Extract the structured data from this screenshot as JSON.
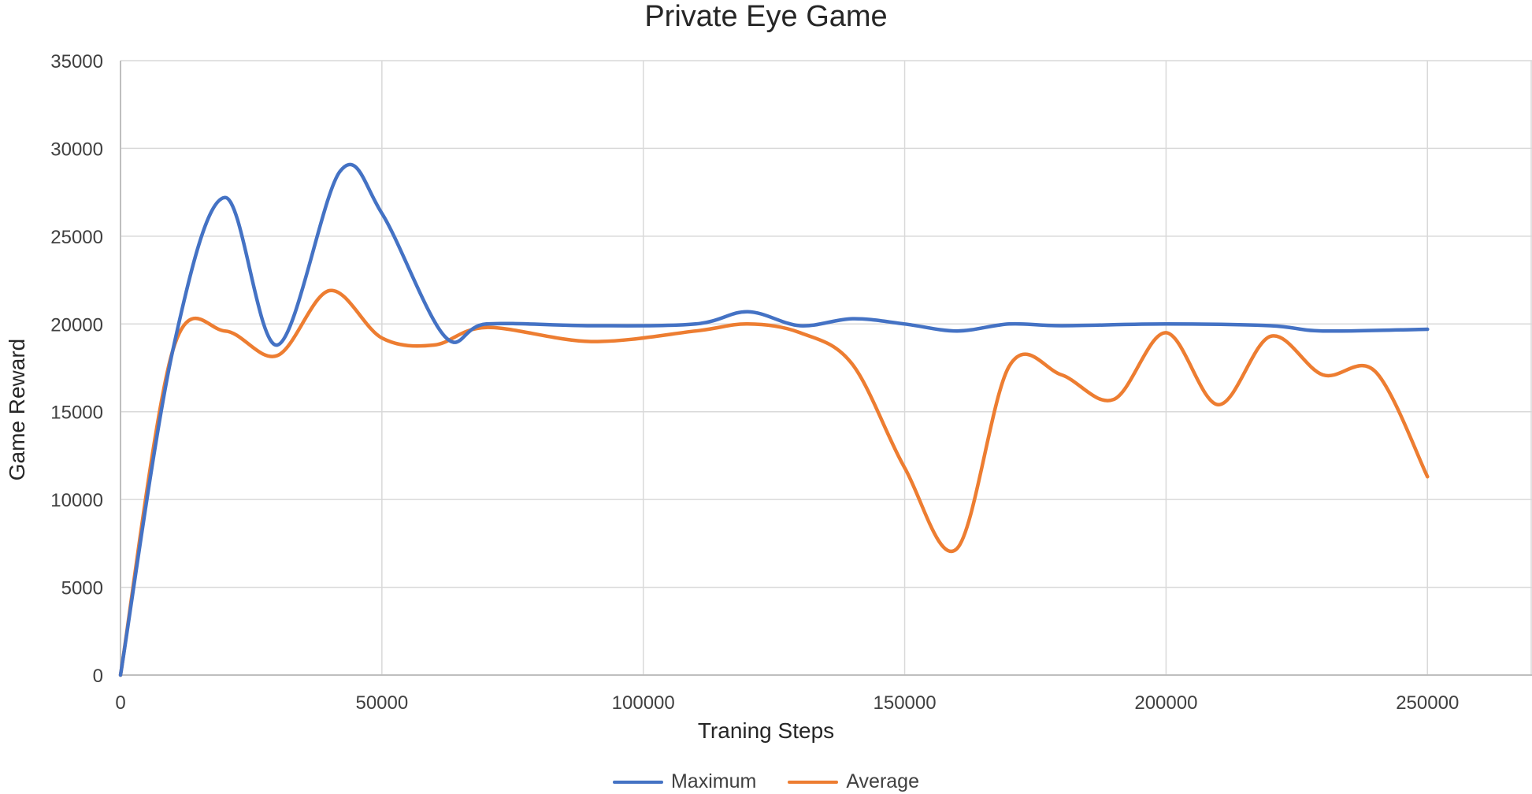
{
  "chart_data": {
    "type": "line",
    "title": "Private Eye Game",
    "xlabel": "Traning Steps",
    "ylabel": "Game Reward",
    "xlim": [
      0,
      270000
    ],
    "ylim": [
      0,
      35000
    ],
    "x_ticks": [
      0,
      50000,
      100000,
      150000,
      200000,
      250000
    ],
    "y_ticks": [
      0,
      5000,
      10000,
      15000,
      20000,
      25000,
      30000,
      35000
    ],
    "grid": true,
    "legend": "bottom",
    "series": [
      {
        "name": "Maximum",
        "color": "#4472C4",
        "points": [
          [
            0,
            0
          ],
          [
            10000,
            18500
          ],
          [
            20000,
            27200
          ],
          [
            30000,
            18800
          ],
          [
            42000,
            28700
          ],
          [
            50000,
            26300
          ],
          [
            62000,
            19300
          ],
          [
            70000,
            20000
          ],
          [
            90000,
            19900
          ],
          [
            110000,
            20000
          ],
          [
            120000,
            20700
          ],
          [
            130000,
            19900
          ],
          [
            140000,
            20300
          ],
          [
            150000,
            20000
          ],
          [
            160000,
            19600
          ],
          [
            170000,
            20000
          ],
          [
            180000,
            19900
          ],
          [
            200000,
            20000
          ],
          [
            220000,
            19900
          ],
          [
            230000,
            19600
          ],
          [
            250000,
            19700
          ]
        ]
      },
      {
        "name": "Average",
        "color": "#ED7D31",
        "points": [
          [
            0,
            0
          ],
          [
            10000,
            18500
          ],
          [
            20000,
            19600
          ],
          [
            30000,
            18200
          ],
          [
            40000,
            21900
          ],
          [
            50000,
            19200
          ],
          [
            60000,
            18800
          ],
          [
            70000,
            19800
          ],
          [
            90000,
            19000
          ],
          [
            110000,
            19600
          ],
          [
            120000,
            20000
          ],
          [
            130000,
            19500
          ],
          [
            140000,
            17700
          ],
          [
            150000,
            11800
          ],
          [
            160000,
            7200
          ],
          [
            170000,
            17600
          ],
          [
            180000,
            17100
          ],
          [
            190000,
            15700
          ],
          [
            200000,
            19500
          ],
          [
            210000,
            15400
          ],
          [
            220000,
            19300
          ],
          [
            230000,
            17100
          ],
          [
            240000,
            17300
          ],
          [
            250000,
            11300
          ]
        ]
      }
    ]
  }
}
